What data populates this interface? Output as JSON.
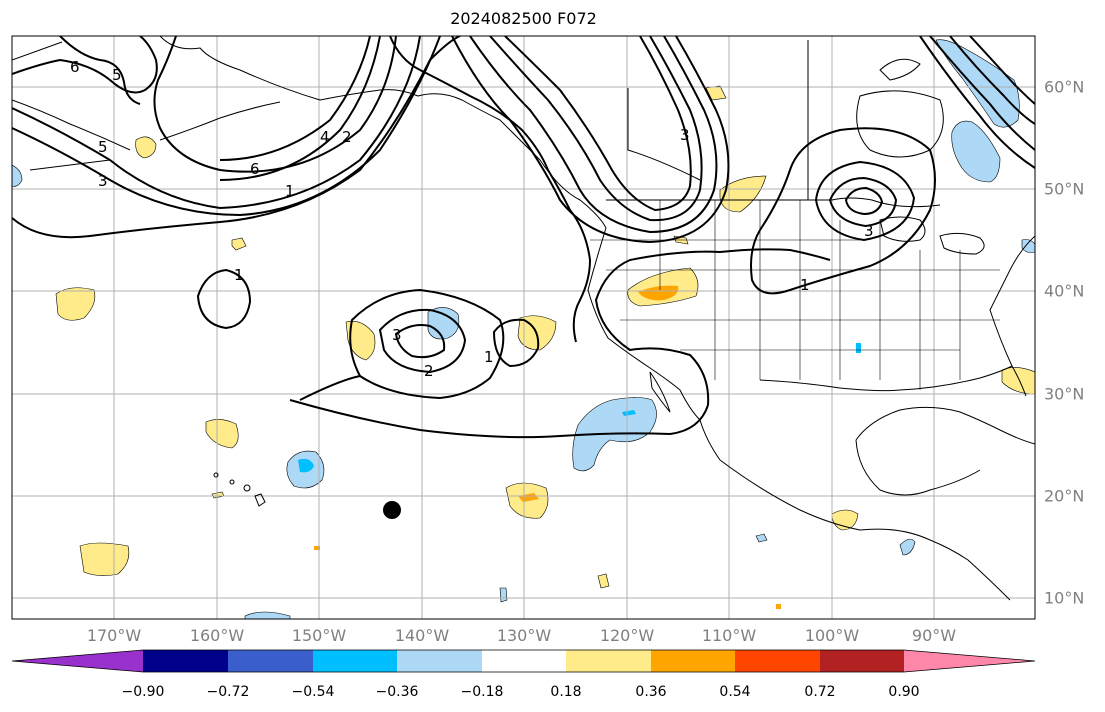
{
  "title": "2024082500 F072",
  "lon_ticks": [
    "170°W",
    "160°W",
    "150°W",
    "140°W",
    "130°W",
    "120°W",
    "110°W",
    "100°W",
    "90°W"
  ],
  "lat_ticks": [
    "60°N",
    "50°N",
    "40°N",
    "30°N",
    "20°N",
    "10°N"
  ],
  "contour_labels": [
    "6",
    "5",
    "5",
    "3",
    "6",
    "4",
    "2",
    "1",
    "1",
    "3",
    "2",
    "1",
    "3",
    "1",
    "3"
  ],
  "colorbar": {
    "labels": [
      "−0.90",
      "−0.72",
      "−0.54",
      "−0.36",
      "−0.18",
      "0.18",
      "0.36",
      "0.54",
      "0.72",
      "0.90"
    ],
    "colors": [
      "#9932cc",
      "#00008b",
      "#3a5fcd",
      "#00bfff",
      "#add8f6",
      "#ffffff",
      "#ffeb8a",
      "#ffa500",
      "#ff4500",
      "#b22222",
      "#ff88aa"
    ]
  },
  "colors": {
    "contour": "#000000",
    "coast": "#000000",
    "grid": "#b0b0b0",
    "tick_text": "#808080"
  }
}
